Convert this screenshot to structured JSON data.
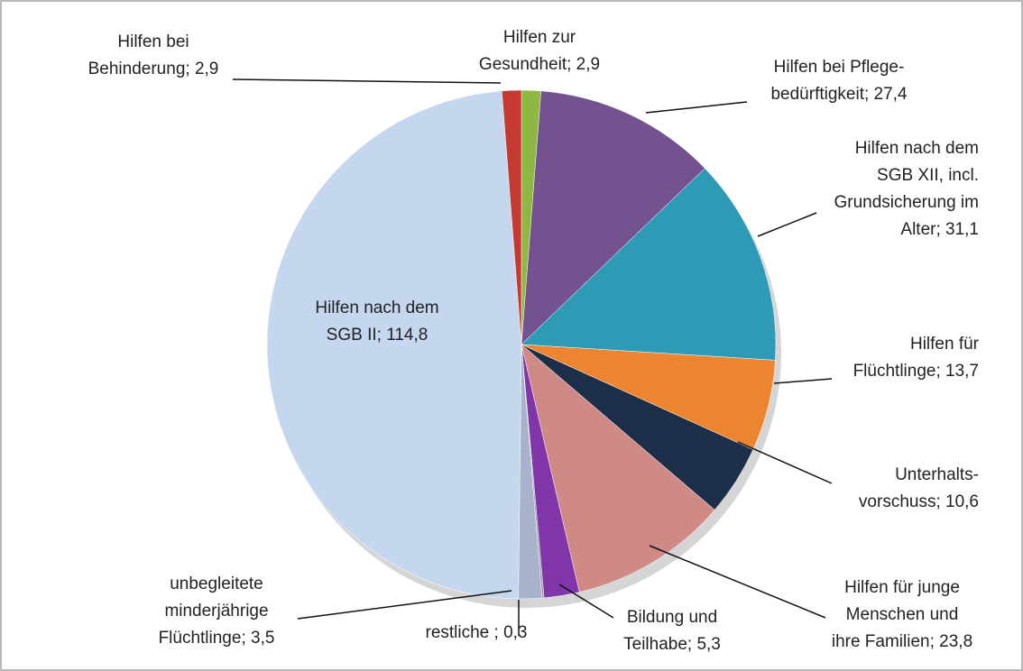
{
  "chart_data": {
    "type": "pie",
    "categories": [
      "Hilfen zur Gesundheit",
      "Hilfen bei Pflegebedürftigkeit",
      "Hilfen nach dem SGB XII, incl. Grundsicherung im Alter",
      "Hilfen für Flüchtlinge",
      "Unterhaltsvorschuss",
      "Hilfen für junge Menschen und ihre Familien",
      "Bildung und Teilhabe",
      "restliche",
      "unbegleitete minderjährige Flüchtlinge",
      "Hilfen nach dem SGB II",
      "Hilfen bei Behinderung"
    ],
    "values": [
      2.9,
      27.4,
      31.1,
      13.7,
      10.6,
      23.8,
      5.3,
      0.3,
      3.5,
      114.8,
      2.9
    ],
    "value_labels": [
      [
        "Hilfen zur",
        "Gesundheit; 2,9"
      ],
      [
        "Hilfen bei Pflege-",
        "bedürftigkeit; 27,4"
      ],
      [
        "Hilfen nach dem",
        "SGB XII, incl.",
        "Grundsicherung im",
        "Alter; 31,1"
      ],
      [
        "Hilfen für",
        "Flüchtlinge; 13,7"
      ],
      [
        "Unterhalts-",
        "vorschuss; 10,6"
      ],
      [
        "Hilfen für junge",
        "Menschen und",
        "ihre Familien; 23,8"
      ],
      [
        "Bildung und",
        "Teilhabe; 5,3"
      ],
      [
        "restliche ; 0,3"
      ],
      [
        "unbegleitete",
        "minderjährige",
        "Flüchtlinge; 3,5"
      ],
      [
        "Hilfen nach dem",
        "SGB II; 114,8"
      ],
      [
        "Hilfen bei",
        "Behinderung; 2,9"
      ]
    ],
    "colors": [
      "#8fb842",
      "#74518f",
      "#2f9ab6",
      "#ec8430",
      "#1d2f48",
      "#d08a86",
      "#8036a8",
      "#9a9aa6",
      "#a9b2cc",
      "#c4d7ee",
      "#c43a30"
    ]
  }
}
